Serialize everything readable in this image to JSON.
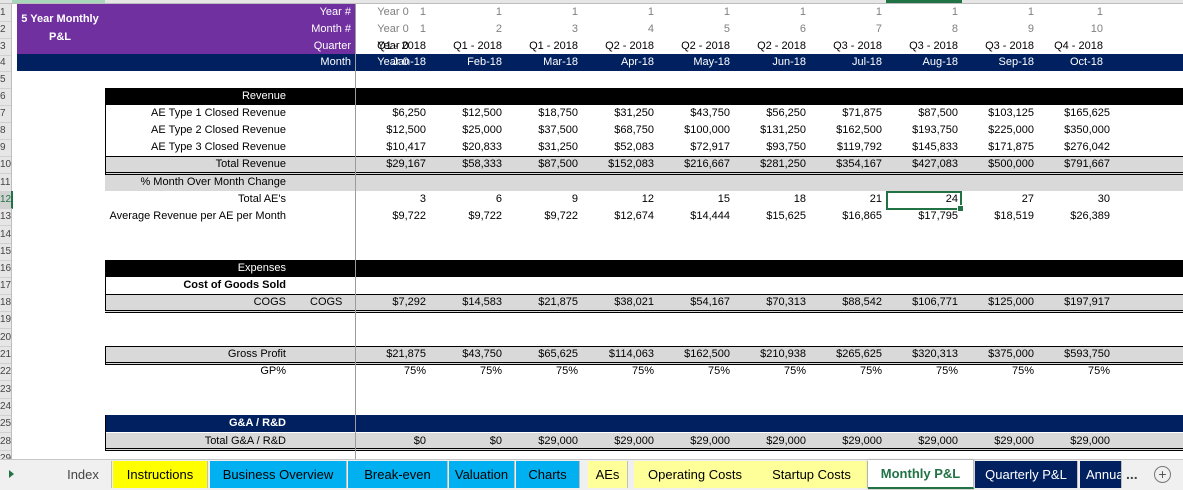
{
  "sheet": {
    "title_line1": "5 Year Monthly",
    "title_line2": "P&L",
    "header_labels": {
      "year": "Year #",
      "month_num": "Month #",
      "quarter": "Quarter",
      "month": "Month"
    },
    "year0": {
      "year": "Year 0",
      "month_num": "Year 0",
      "quarter": "Year 0",
      "month": "Year 0"
    },
    "columns": [
      {
        "year": "1",
        "month_num": "1",
        "quarter": "Q1 - 2018",
        "month": "Jan-18"
      },
      {
        "year": "1",
        "month_num": "2",
        "quarter": "Q1 - 2018",
        "month": "Feb-18"
      },
      {
        "year": "1",
        "month_num": "3",
        "quarter": "Q1 - 2018",
        "month": "Mar-18"
      },
      {
        "year": "1",
        "month_num": "4",
        "quarter": "Q2 - 2018",
        "month": "Apr-18"
      },
      {
        "year": "1",
        "month_num": "5",
        "quarter": "Q2 - 2018",
        "month": "May-18"
      },
      {
        "year": "1",
        "month_num": "6",
        "quarter": "Q2 - 2018",
        "month": "Jun-18"
      },
      {
        "year": "1",
        "month_num": "7",
        "quarter": "Q3 - 2018",
        "month": "Jul-18"
      },
      {
        "year": "1",
        "month_num": "8",
        "quarter": "Q3 - 2018",
        "month": "Aug-18"
      },
      {
        "year": "1",
        "month_num": "9",
        "quarter": "Q3 - 2018",
        "month": "Sep-18"
      },
      {
        "year": "1",
        "month_num": "10",
        "quarter": "Q4 - 2018",
        "month": "Oct-18"
      }
    ],
    "row_numbers": [
      "1",
      "2",
      "3",
      "4",
      "5",
      "6",
      "7",
      "8",
      "9",
      "10",
      "11",
      "12",
      "13",
      "14",
      "15",
      "16",
      "17",
      "18",
      "19",
      "20",
      "21",
      "22",
      "23",
      "24",
      "25",
      "28",
      "29"
    ],
    "revenue": {
      "header": "Revenue",
      "ae1": {
        "label": "AE Type 1 Closed Revenue",
        "values": [
          "$6,250",
          "$12,500",
          "$18,750",
          "$31,250",
          "$43,750",
          "$56,250",
          "$71,875",
          "$87,500",
          "$103,125",
          "$165,625"
        ]
      },
      "ae2": {
        "label": "AE Type 2 Closed Revenue",
        "values": [
          "$12,500",
          "$25,000",
          "$37,500",
          "$68,750",
          "$100,000",
          "$131,250",
          "$162,500",
          "$193,750",
          "$225,000",
          "$350,000"
        ]
      },
      "ae3": {
        "label": "AE Type 3 Closed Revenue",
        "values": [
          "$10,417",
          "$20,833",
          "$31,250",
          "$52,083",
          "$72,917",
          "$93,750",
          "$119,792",
          "$145,833",
          "$171,875",
          "$276,042"
        ]
      },
      "total": {
        "label": "Total Revenue",
        "values": [
          "$29,167",
          "$58,333",
          "$87,500",
          "$152,083",
          "$216,667",
          "$281,250",
          "$354,167",
          "$427,083",
          "$500,000",
          "$791,667"
        ]
      },
      "mom": {
        "label": "% Month Over Month Change"
      },
      "total_aes": {
        "label": "Total AE's",
        "values": [
          "3",
          "6",
          "9",
          "12",
          "15",
          "18",
          "21",
          "24",
          "27",
          "30"
        ]
      },
      "avg_rev": {
        "label": "Average Revenue per AE per Month",
        "values": [
          "$9,722",
          "$9,722",
          "$9,722",
          "$12,674",
          "$14,444",
          "$15,625",
          "$16,865",
          "$17,795",
          "$18,519",
          "$26,389"
        ]
      }
    },
    "expenses": {
      "header": "Expenses",
      "cogs_header": "Cost of Goods Sold",
      "cogs": {
        "label": "COGS",
        "label2": "COGS",
        "values": [
          "$7,292",
          "$14,583",
          "$21,875",
          "$38,021",
          "$54,167",
          "$70,313",
          "$88,542",
          "$106,771",
          "$125,000",
          "$197,917"
        ]
      },
      "gross_profit": {
        "label": "Gross Profit",
        "values": [
          "$21,875",
          "$43,750",
          "$65,625",
          "$114,063",
          "$162,500",
          "$210,938",
          "$265,625",
          "$320,313",
          "$375,000",
          "$593,750"
        ]
      },
      "gp_pct": {
        "label": "GP%",
        "values": [
          "75%",
          "75%",
          "75%",
          "75%",
          "75%",
          "75%",
          "75%",
          "75%",
          "75%",
          "75%"
        ]
      },
      "ga_header": "G&A / R&D",
      "total_ga": {
        "label": "Total G&A / R&D",
        "values": [
          "$0",
          "$0",
          "$29,000",
          "$29,000",
          "$29,000",
          "$29,000",
          "$29,000",
          "$29,000",
          "$29,000",
          "$29,000"
        ]
      }
    },
    "selected_cell": "Jul-18 / Total AE's"
  },
  "tabs": [
    {
      "label": "Index",
      "bg": "#f0f0f0",
      "color": "#444444"
    },
    {
      "label": "Instructions",
      "bg": "#ffff00",
      "color": "#000000"
    },
    {
      "label": "Business Overview",
      "bg": "#00b0f0",
      "color": "#000000"
    },
    {
      "label": "Break-even",
      "bg": "#00b0f0",
      "color": "#000000"
    },
    {
      "label": "Valuation",
      "bg": "#00b0f0",
      "color": "#000000"
    },
    {
      "label": "Charts",
      "bg": "#00b0f0",
      "color": "#000000"
    },
    {
      "label": "AEs",
      "bg": "#ffff99",
      "color": "#000000"
    },
    {
      "label": "Operating Costs",
      "bg": "#ffff99",
      "color": "#000000"
    },
    {
      "label": "Startup Costs",
      "bg": "#ffff99",
      "color": "#000000"
    },
    {
      "label": "Monthly P&L",
      "bg": "#ffffff",
      "color": "#217346",
      "active": true
    },
    {
      "label": "Quarterly P&L",
      "bg": "#002060",
      "color": "#ffffff"
    },
    {
      "label": "Annual P&L",
      "bg": "#002060",
      "color": "#ffffff"
    }
  ],
  "tabbar": {
    "more": "...",
    "add": "+"
  }
}
